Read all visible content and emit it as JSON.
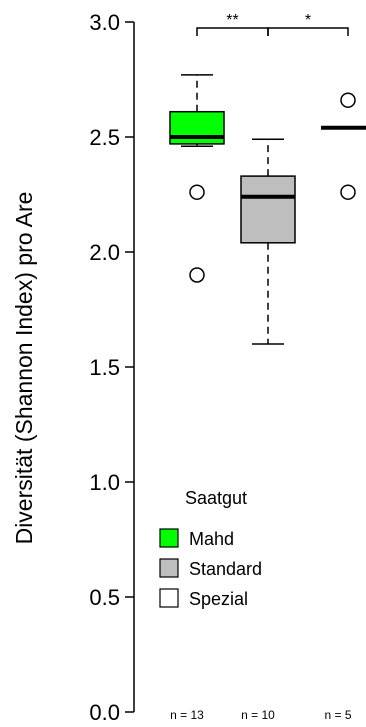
{
  "chart_data": {
    "type": "boxplot",
    "ylabel": "Diversität (Shannon Index) pro Are",
    "ylim": [
      0.0,
      3.0
    ],
    "yticks": [
      "0.0",
      "0.5",
      "1.0",
      "1.5",
      "2.0",
      "2.5",
      "3.0"
    ],
    "grid": false,
    "legend": {
      "title": "Saatgut",
      "placement": "bottom-left",
      "entries": [
        {
          "label": "Mahd",
          "color": "#00ff00"
        },
        {
          "label": "Standard",
          "color": "#bebebe"
        },
        {
          "label": "Spezial",
          "color": "#ffffff"
        }
      ]
    },
    "groups": [
      {
        "name": "Mahd",
        "n_label": "n = 13",
        "color": "#00ff00",
        "whisker_low": 2.46,
        "q1": 2.47,
        "median": 2.5,
        "q3": 2.61,
        "whisker_high": 2.77,
        "outliers": [
          2.26,
          1.9
        ]
      },
      {
        "name": "Standard",
        "n_label": "n = 10",
        "color": "#bebebe",
        "whisker_low": 1.6,
        "q1": 2.04,
        "median": 2.24,
        "q3": 2.33,
        "whisker_high": 2.49,
        "outliers": []
      },
      {
        "name": "Spezial",
        "n_label": "n = 5",
        "color": "#ffffff",
        "whisker_low": 2.54,
        "q1": 2.54,
        "median": 2.54,
        "q3": 2.54,
        "whisker_high": 2.54,
        "outliers": [
          2.66,
          2.26
        ]
      }
    ],
    "significance": [
      {
        "from": 0,
        "to": 1,
        "label": "**"
      },
      {
        "from": 1,
        "to": 2,
        "label": "*"
      }
    ]
  }
}
